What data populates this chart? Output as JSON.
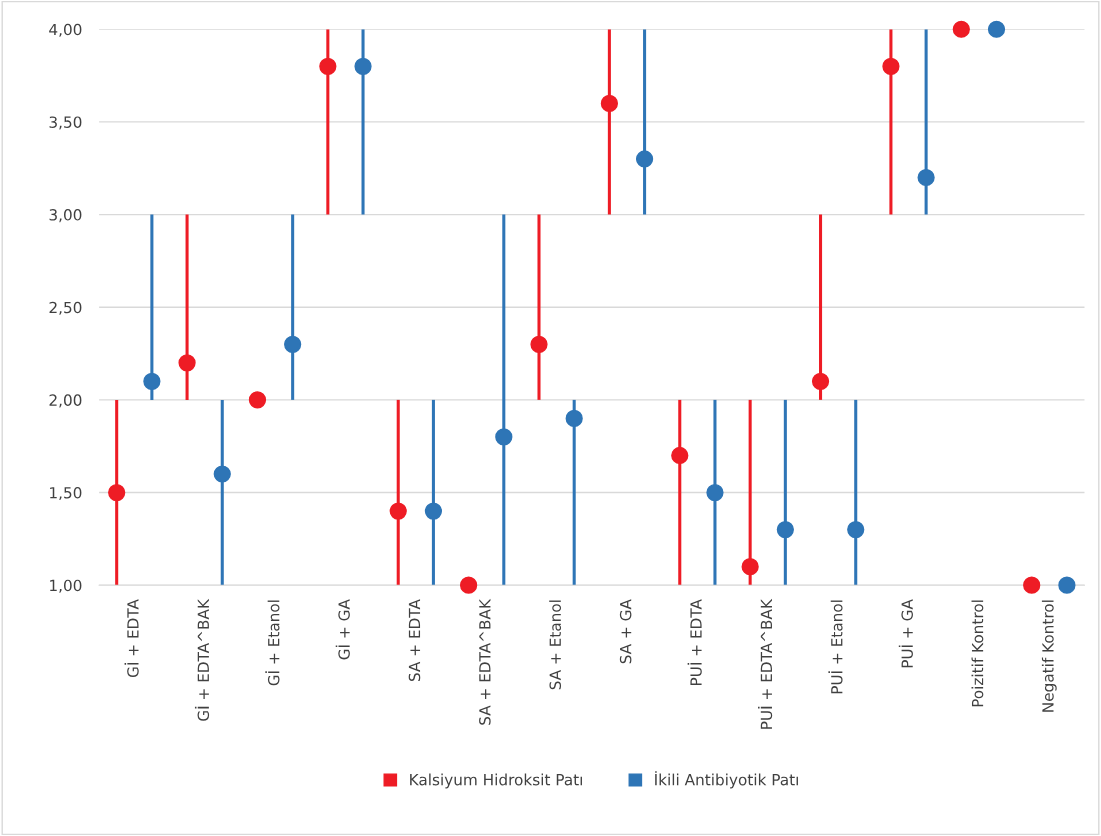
{
  "chart_data": {
    "type": "scatter",
    "categories": [
      "Gİ + EDTA",
      "Gİ + EDTA^BAK",
      "Gİ + Etanol",
      "Gİ + GA",
      "SA + EDTA",
      "SA + EDTA^BAK",
      "SA + Etanol",
      "SA + GA",
      "PUİ + EDTA",
      "PUİ + EDTA^BAK",
      "PUİ + Etanol",
      "PUİ + GA",
      "Poizitif Kontrol",
      "Negatif Kontrol"
    ],
    "series": [
      {
        "name": "Kalsiyum Hidroksit Patı",
        "color": "#ee1c25",
        "values": [
          1.5,
          2.2,
          2.0,
          3.8,
          1.4,
          1.0,
          2.3,
          3.6,
          1.7,
          1.1,
          2.1,
          3.8,
          4.0,
          1.0
        ],
        "errors": [
          [
            1,
            2
          ],
          [
            2,
            3
          ],
          null,
          [
            3,
            4
          ],
          [
            1,
            2
          ],
          null,
          [
            2,
            3
          ],
          [
            3,
            4
          ],
          [
            1,
            2
          ],
          [
            1,
            2
          ],
          [
            2,
            3
          ],
          [
            3,
            4
          ],
          null,
          null
        ]
      },
      {
        "name": "İkili Antibiyotik Patı",
        "color": "#2e75b6",
        "values": [
          2.1,
          1.6,
          2.3,
          3.8,
          1.4,
          1.8,
          1.9,
          3.3,
          1.5,
          1.3,
          1.3,
          3.2,
          4.0,
          1.0
        ],
        "errors": [
          [
            2,
            3
          ],
          [
            1,
            2
          ],
          [
            2,
            3
          ],
          [
            3,
            4
          ],
          [
            1,
            2
          ],
          [
            1,
            3
          ],
          [
            1,
            2
          ],
          [
            3,
            4
          ],
          [
            1,
            2
          ],
          [
            1,
            2
          ],
          [
            1,
            2
          ],
          [
            3,
            4
          ],
          null,
          null
        ]
      }
    ],
    "ylim": [
      1,
      4
    ],
    "yticks": [
      {
        "value": 1,
        "label": "1,00"
      },
      {
        "value": 1.5,
        "label": "1,50"
      },
      {
        "value": 2,
        "label": "2,00"
      },
      {
        "value": 2.5,
        "label": "2,50"
      },
      {
        "value": 3,
        "label": "3,00"
      },
      {
        "value": 3.5,
        "label": "3,50"
      },
      {
        "value": 4,
        "label": "4,00"
      }
    ],
    "grid": "y",
    "legend": "bottom",
    "marker": "circle"
  }
}
